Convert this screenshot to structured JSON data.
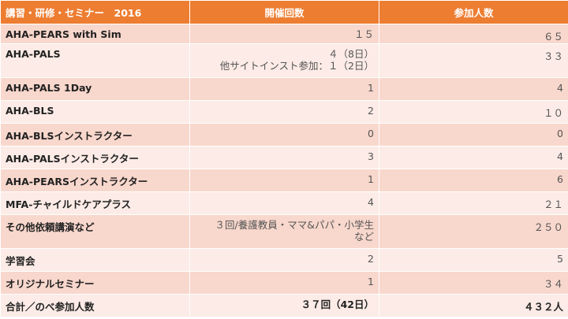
{
  "header": {
    "course": "講習・研修・セミナー　2016",
    "sessions": "開催回数",
    "participants": "参加人数"
  },
  "rows": [
    {
      "name": "AHA-PEARS with Sim",
      "sessions": [
        "１５"
      ],
      "participants": "６５"
    },
    {
      "name": "AHA-PALS",
      "sessions": [
        "４（8日）",
        "他サイトインスト参加：１（2日）"
      ],
      "participants": "３３"
    },
    {
      "name": "AHA-PALS 1Day",
      "sessions": [
        "1"
      ],
      "participants": "4"
    },
    {
      "name": "AHA-BLS",
      "sessions": [
        "2"
      ],
      "participants": "１０"
    },
    {
      "name": "AHA-BLSインストラクター",
      "sessions": [
        "0"
      ],
      "participants": "0"
    },
    {
      "name": "AHA-PALSインストラクター",
      "sessions": [
        "3"
      ],
      "participants": "4"
    },
    {
      "name": "AHA-PEARSインストラクター",
      "sessions": [
        "1"
      ],
      "participants": "6"
    },
    {
      "name": "MFA-チャイルドケアプラス",
      "sessions": [
        "4"
      ],
      "participants": "２１"
    },
    {
      "name": "その他依頼講演など",
      "sessions": [
        "３回/養護教員・ママ&パパ・小学生",
        "など"
      ],
      "participants": "２５０"
    },
    {
      "name": "学習会",
      "sessions": [
        "2"
      ],
      "participants": "5"
    },
    {
      "name": "オリジナルセミナー",
      "sessions": [
        "1"
      ],
      "participants": "３４"
    },
    {
      "name": "合計／のべ参加人数",
      "sessions": [
        "３７回（42日）"
      ],
      "participants": "４３２人"
    }
  ]
}
